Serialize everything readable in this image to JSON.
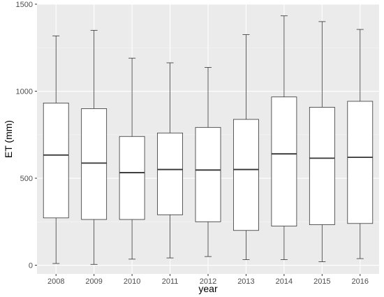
{
  "chart_data": {
    "type": "boxplot",
    "xlabel": "year",
    "ylabel": "ET (mm)",
    "ylim": [
      -50,
      1500
    ],
    "yticks": [
      0,
      500,
      1000,
      1500
    ],
    "grid": true,
    "legend": "none",
    "colors": {
      "panel": "#ebebeb",
      "grid_major": "#ffffff",
      "grid_minor": "#f5f5f5",
      "box_fill": "#ffffff",
      "box_stroke": "#333333"
    },
    "categories": [
      "2008",
      "2009",
      "2010",
      "2011",
      "2012",
      "2013",
      "2014",
      "2015",
      "2016"
    ],
    "boxes": [
      {
        "min": 10,
        "q1": 272,
        "median": 633,
        "q3": 932,
        "max": 1318
      },
      {
        "min": 5,
        "q1": 263,
        "median": 587,
        "q3": 900,
        "max": 1350
      },
      {
        "min": 35,
        "q1": 263,
        "median": 532,
        "q3": 740,
        "max": 1190
      },
      {
        "min": 42,
        "q1": 290,
        "median": 550,
        "q3": 760,
        "max": 1163
      },
      {
        "min": 50,
        "q1": 250,
        "median": 547,
        "q3": 792,
        "max": 1137
      },
      {
        "min": 32,
        "q1": 200,
        "median": 550,
        "q3": 838,
        "max": 1325
      },
      {
        "min": 32,
        "q1": 225,
        "median": 640,
        "q3": 967,
        "max": 1433
      },
      {
        "min": 20,
        "q1": 233,
        "median": 615,
        "q3": 908,
        "max": 1400
      },
      {
        "min": 38,
        "q1": 240,
        "median": 620,
        "q3": 942,
        "max": 1355
      }
    ]
  }
}
